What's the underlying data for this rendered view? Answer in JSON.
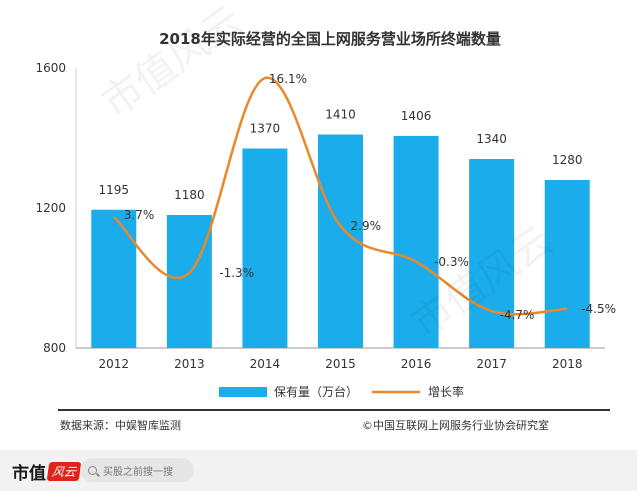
{
  "chart_data": {
    "type": "bar",
    "title": "2018年实际经营的全国上网服务营业场所终端数量",
    "categories": [
      "2012",
      "2013",
      "2014",
      "2015",
      "2016",
      "2017",
      "2018"
    ],
    "series": [
      {
        "name": "保有量（万台）",
        "kind": "bar",
        "values": [
          1195,
          1180,
          1370,
          1410,
          1406,
          1340,
          1280
        ],
        "labels": [
          "1195",
          "1180",
          "1370",
          "1410",
          "1406",
          "1340",
          "1280"
        ]
      },
      {
        "name": "增长率",
        "kind": "line",
        "values": [
          3.7,
          -1.3,
          16.1,
          2.9,
          -0.3,
          -4.7,
          -4.5
        ],
        "labels": [
          "3.7%",
          "-1.3%",
          "16.1%",
          "2.9%",
          "-0.3%",
          "-4.7%",
          "-4.5%"
        ]
      }
    ],
    "ylim": [
      800,
      1600
    ],
    "yticks": [
      "800",
      "1200",
      "1600"
    ],
    "secondary_ylim": [
      -8,
      17
    ],
    "legend_position": "bottom",
    "xlabel": "",
    "ylabel": ""
  },
  "colors": {
    "bar": "#1badeb",
    "line": "#e8892b",
    "axis": "#999999",
    "text": "#333333"
  },
  "notes": {
    "source": "数据来源：中娱智库监测",
    "copyright": "©中国互联网上网服务行业协会研究室"
  },
  "watermark": {
    "text_a": "市值风云",
    "text_b": "市值风云"
  },
  "footer": {
    "brand": "市值",
    "brand_mark": "风云",
    "search_placeholder": "买股之前搜一搜"
  }
}
